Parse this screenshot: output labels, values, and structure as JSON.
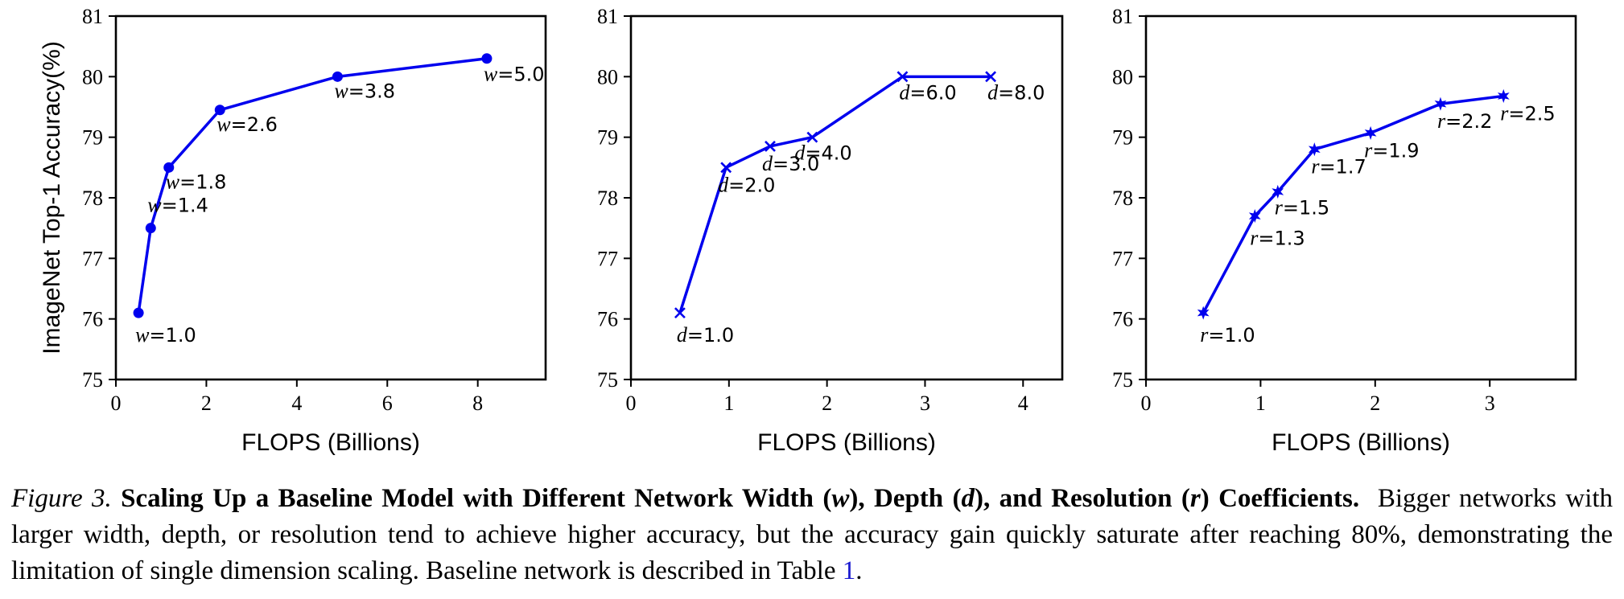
{
  "chart_data": [
    {
      "type": "line",
      "xlabel": "FLOPS (Billions)",
      "ylabel": "ImageNet Top-1 Accuracy(%)",
      "xlim": [
        0,
        9.5
      ],
      "ylim": [
        75,
        81
      ],
      "xticks": [
        0,
        2,
        4,
        6,
        8
      ],
      "yticks": [
        75,
        76,
        77,
        78,
        79,
        80,
        81
      ],
      "marker": "circle",
      "color": "#0000ee",
      "grid": false,
      "series": [
        {
          "x": [
            0.5,
            0.77,
            1.17,
            2.3,
            4.9,
            8.2
          ],
          "y": [
            76.1,
            77.5,
            78.5,
            79.45,
            80.0,
            80.3
          ],
          "point_labels": [
            {
              "var": "w",
              "text": "=1.0"
            },
            {
              "var": "w",
              "text": "=1.4"
            },
            {
              "var": "w",
              "text": "=1.8"
            },
            {
              "var": "w",
              "text": "=2.6"
            },
            {
              "var": "w",
              "text": "=3.8"
            },
            {
              "var": "w",
              "text": "=5.0"
            }
          ]
        }
      ]
    },
    {
      "type": "line",
      "xlabel": "FLOPS (Billions)",
      "ylabel": "",
      "xlim": [
        0,
        4.4
      ],
      "ylim": [
        75,
        81
      ],
      "xticks": [
        0,
        1,
        2,
        3,
        4
      ],
      "yticks": [
        75,
        76,
        77,
        78,
        79,
        80,
        81
      ],
      "marker": "x",
      "color": "#0000ee",
      "grid": false,
      "series": [
        {
          "x": [
            0.5,
            0.97,
            1.42,
            1.85,
            2.77,
            3.67
          ],
          "y": [
            76.1,
            78.5,
            78.85,
            79.0,
            80.0,
            80.0
          ],
          "point_labels": [
            {
              "var": "d",
              "text": "=1.0"
            },
            {
              "var": "d",
              "text": "=2.0"
            },
            {
              "var": "d",
              "text": "=3.0"
            },
            {
              "var": "d",
              "text": "=4.0"
            },
            {
              "var": "d",
              "text": "=6.0"
            },
            {
              "var": "d",
              "text": "=8.0"
            }
          ]
        }
      ]
    },
    {
      "type": "line",
      "xlabel": "FLOPS (Billions)",
      "ylabel": "",
      "xlim": [
        0,
        3.75
      ],
      "ylim": [
        75,
        81
      ],
      "xticks": [
        0,
        1,
        2,
        3
      ],
      "yticks": [
        75,
        76,
        77,
        78,
        79,
        80,
        81
      ],
      "marker": "star",
      "color": "#0000ee",
      "grid": false,
      "series": [
        {
          "x": [
            0.5,
            0.95,
            1.15,
            1.47,
            1.96,
            2.57,
            3.12
          ],
          "y": [
            76.1,
            77.7,
            78.1,
            78.8,
            79.07,
            79.55,
            79.68
          ],
          "point_labels": [
            {
              "var": "r",
              "text": "=1.0"
            },
            {
              "var": "r",
              "text": "=1.3"
            },
            {
              "var": "r",
              "text": "=1.5"
            },
            {
              "var": "r",
              "text": "=1.7"
            },
            {
              "var": "r",
              "text": "=1.9"
            },
            {
              "var": "r",
              "text": "=2.2"
            },
            {
              "var": "r",
              "text": "=2.5"
            }
          ]
        }
      ]
    }
  ],
  "caption": {
    "figure_label": "Figure 3.",
    "title": "Scaling Up a Baseline Model with Different Network Width (",
    "title_w": "w",
    "title_mid1": "), Depth (",
    "title_d": "d",
    "title_mid2": "), and Resolution (",
    "title_r": "r",
    "title_end": ") Coefficients.",
    "body": "Bigger networks with larger width, depth, or resolution tend to achieve higher accuracy, but the accuracy gain quickly saturate after reaching 80%, demonstrating the limitation of single dimension scaling. Baseline network is described in Table ",
    "table_ref": "1",
    "end": "."
  }
}
